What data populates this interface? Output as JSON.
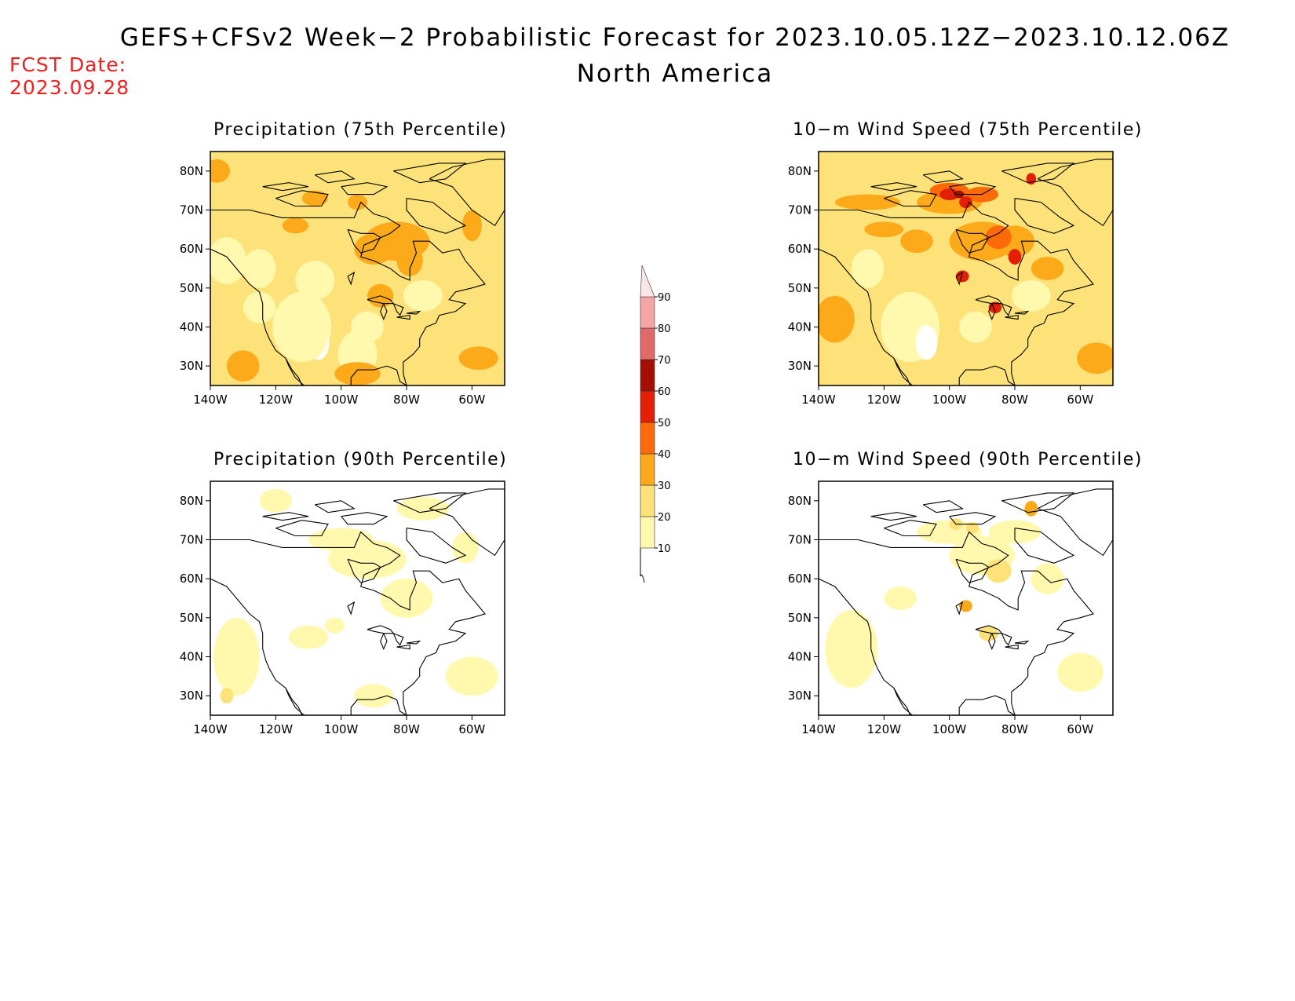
{
  "title_line1": "GEFS+CFSv2 Week−2 Probabilistic Forecast for 2023.10.05.12Z−2023.10.12.06Z",
  "title_line2": "North America",
  "fcst_label": "FCST Date:",
  "fcst_date": "2023.09.28",
  "colors": {
    "bins": [
      "#fff8ad",
      "#fde27a",
      "#fdaa1a",
      "#fd6a0a",
      "#e32005",
      "#a50e02",
      "#e06a6a",
      "#f4a6a6",
      "#fde4e6"
    ],
    "land_outline": "#000000"
  },
  "colorbar": {
    "levels": [
      "10",
      "20",
      "30",
      "40",
      "50",
      "60",
      "70",
      "80",
      "90"
    ]
  },
  "lat_ticks": [
    "30N",
    "40N",
    "50N",
    "60N",
    "70N",
    "80N"
  ],
  "lon_ticks": [
    "140W",
    "120W",
    "100W",
    "80W",
    "60W"
  ],
  "panels": [
    {
      "id": "p75",
      "title": "Precipitation (75th Percentile)",
      "base_level": 1
    },
    {
      "id": "w75",
      "title": "10−m Wind Speed (75th Percentile)",
      "base_level": 1
    },
    {
      "id": "p90",
      "title": "Precipitation (90th Percentile)",
      "base_level": 0
    },
    {
      "id": "w90",
      "title": "10−m Wind Speed (90th Percentile)",
      "base_level": 0
    }
  ]
}
